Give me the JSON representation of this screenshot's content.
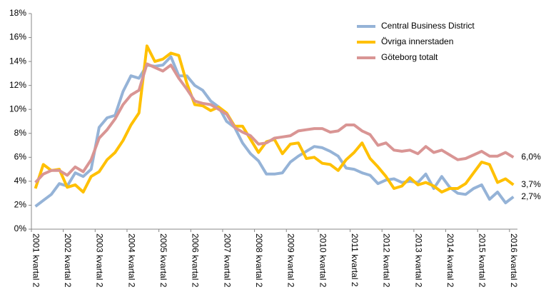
{
  "chart_data": {
    "type": "line",
    "categories": [
      "2001 kvartal 2",
      null,
      null,
      null,
      "2002 kvartal 2",
      null,
      null,
      null,
      "2003 kvartal 2",
      null,
      null,
      null,
      "2004 kvartal 2",
      null,
      null,
      null,
      "2005 kvartal 2",
      null,
      null,
      null,
      "2006 kvartal 2",
      null,
      null,
      null,
      "2007 kvartal 2",
      null,
      null,
      null,
      "2008 kvartal 2",
      null,
      null,
      null,
      "2009 kvartal 2",
      null,
      null,
      null,
      "2010 kvartal 2",
      null,
      null,
      null,
      "2011 kvartal 2",
      null,
      null,
      null,
      "2012 kvartal 2",
      null,
      null,
      null,
      "2013 kvartal 2",
      null,
      null,
      null,
      "2014 kvartal 2",
      null,
      null,
      null,
      "2015 kvartal 2",
      null,
      null,
      null,
      "2016 kvartal 2"
    ],
    "series": [
      {
        "name": "Central Business District",
        "color": "#95b3d7",
        "values": [
          1.9,
          2.4,
          2.9,
          3.8,
          3.6,
          4.7,
          4.4,
          5.0,
          8.5,
          9.3,
          9.5,
          11.5,
          12.8,
          12.6,
          13.7,
          13.6,
          13.7,
          14.4,
          12.8,
          12.8,
          12.0,
          11.6,
          10.7,
          10.2,
          9.0,
          8.5,
          7.2,
          6.3,
          5.7,
          4.6,
          4.6,
          4.7,
          5.6,
          6.1,
          6.5,
          6.9,
          6.8,
          6.5,
          6.1,
          5.1,
          5.0,
          4.7,
          4.5,
          3.8,
          4.1,
          4.2,
          3.9,
          4.0,
          3.9,
          4.6,
          3.4,
          4.4,
          3.5,
          3.0,
          2.9,
          3.4,
          3.7,
          2.5,
          3.1,
          2.2,
          2.7
        ],
        "value_labels": [
          null,
          null,
          null,
          null,
          null,
          null,
          null,
          null,
          null,
          null,
          null,
          null,
          null,
          null,
          null,
          null,
          null,
          null,
          null,
          null,
          null,
          null,
          null,
          null,
          null,
          null,
          null,
          null,
          null,
          null,
          null,
          null,
          null,
          null,
          null,
          null,
          null,
          null,
          null,
          null,
          null,
          null,
          null,
          null,
          null,
          null,
          null,
          null,
          null,
          null,
          null,
          null,
          null,
          null,
          null,
          null,
          null,
          null,
          null,
          null,
          "2,7%"
        ]
      },
      {
        "name": "Övriga innerstaden",
        "color": "#ffc000",
        "values": [
          3.4,
          5.4,
          4.9,
          5.0,
          3.5,
          3.7,
          3.1,
          4.4,
          4.8,
          5.8,
          6.4,
          7.4,
          8.7,
          9.7,
          15.3,
          14.0,
          14.2,
          14.7,
          14.5,
          12.2,
          10.4,
          10.3,
          9.9,
          10.2,
          9.7,
          8.6,
          8.6,
          7.5,
          6.4,
          7.3,
          7.5,
          6.3,
          7.1,
          7.2,
          5.9,
          6.0,
          5.5,
          5.4,
          4.9,
          5.8,
          6.4,
          7.2,
          5.9,
          5.2,
          4.4,
          3.4,
          3.6,
          4.3,
          3.7,
          3.9,
          3.6,
          3.1,
          3.4,
          3.4,
          3.8,
          4.7,
          5.6,
          5.4,
          3.9,
          4.2,
          3.7
        ],
        "value_labels": [
          null,
          null,
          null,
          null,
          null,
          null,
          null,
          null,
          null,
          null,
          null,
          null,
          null,
          null,
          null,
          null,
          null,
          null,
          null,
          null,
          null,
          null,
          null,
          null,
          null,
          null,
          null,
          null,
          null,
          null,
          null,
          null,
          null,
          null,
          null,
          null,
          null,
          null,
          null,
          null,
          null,
          null,
          null,
          null,
          null,
          null,
          null,
          null,
          null,
          null,
          null,
          null,
          null,
          null,
          null,
          null,
          null,
          null,
          null,
          null,
          "3,7%"
        ]
      },
      {
        "name": "Göteborg totalt",
        "color": "#d99594",
        "values": [
          3.9,
          4.6,
          4.9,
          4.9,
          4.5,
          5.2,
          4.8,
          5.8,
          7.6,
          8.3,
          9.2,
          10.4,
          11.2,
          11.6,
          13.8,
          13.5,
          13.2,
          13.7,
          12.6,
          11.7,
          10.7,
          10.5,
          10.4,
          10.0,
          9.6,
          8.5,
          8.1,
          7.8,
          7.1,
          7.2,
          7.6,
          7.7,
          7.8,
          8.2,
          8.3,
          8.4,
          8.4,
          8.1,
          8.2,
          8.7,
          8.7,
          8.2,
          7.9,
          7.0,
          7.2,
          6.6,
          6.5,
          6.6,
          6.3,
          6.9,
          6.4,
          6.6,
          6.2,
          5.8,
          5.9,
          6.2,
          6.5,
          6.1,
          6.1,
          6.4,
          6.0
        ],
        "value_labels": [
          null,
          null,
          null,
          null,
          null,
          null,
          null,
          null,
          null,
          null,
          null,
          null,
          null,
          null,
          null,
          null,
          null,
          null,
          null,
          null,
          null,
          null,
          null,
          null,
          null,
          null,
          null,
          null,
          null,
          null,
          null,
          null,
          null,
          null,
          null,
          null,
          null,
          null,
          null,
          null,
          null,
          null,
          null,
          null,
          null,
          null,
          null,
          null,
          null,
          null,
          null,
          null,
          null,
          null,
          null,
          null,
          null,
          null,
          null,
          null,
          "6,0%"
        ]
      }
    ],
    "ylim": [
      0,
      18
    ],
    "yticks": [
      {
        "value": 0,
        "label": "0%"
      },
      {
        "value": 2,
        "label": "2%"
      },
      {
        "value": 4,
        "label": "4%"
      },
      {
        "value": 6,
        "label": "6%"
      },
      {
        "value": 8,
        "label": "8%"
      },
      {
        "value": 10,
        "label": "10%"
      },
      {
        "value": 12,
        "label": "12%"
      },
      {
        "value": 14,
        "label": "14%"
      },
      {
        "value": 16,
        "label": "16%"
      },
      {
        "value": 18,
        "label": "18%"
      }
    ],
    "legend": "top-right"
  }
}
